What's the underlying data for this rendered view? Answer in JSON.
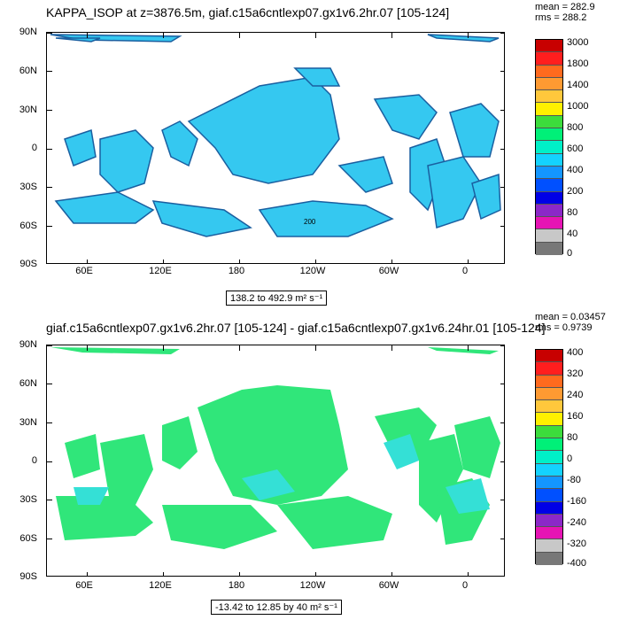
{
  "panels": [
    {
      "title": "KAPPA_ISOP at z=3876.5m, giaf.c15a6cntlexp07.gx1v6.2hr.07 [105-124]",
      "mean": "mean = 282.9",
      "rms": "rms = 288.2",
      "range": "138.2 to 492.9 m² s⁻¹",
      "contour_label": "200",
      "colorbar_labels": [
        "3000",
        "1800",
        "1400",
        "1000",
        "800",
        "600",
        "400",
        "200",
        "80",
        "40",
        "0"
      ],
      "colorbar_colors": [
        "#c80000",
        "#ff1e1e",
        "#ff6a1e",
        "#ff9a32",
        "#ffc83c",
        "#fff000",
        "#3cdc3c",
        "#00f078",
        "#00f0c8",
        "#14d2ff",
        "#1496ff",
        "#0050ff",
        "#0000e6",
        "#8c28c8",
        "#e614b4",
        "#c8c8c8",
        "#787878"
      ],
      "field_color": "#35c8f0"
    },
    {
      "title": "giaf.c15a6cntlexp07.gx1v6.2hr.07 [105-124] - giaf.c15a6cntlexp07.gx1v6.24hr.01 [105-124]",
      "mean": "mean = 0.03457",
      "rms": "rms = 0.9739",
      "range": "-13.42 to 12.85 by 40 m² s⁻¹",
      "colorbar_labels": [
        "400",
        "320",
        "240",
        "160",
        "80",
        "0",
        "-80",
        "-160",
        "-240",
        "-320",
        "-400"
      ],
      "colorbar_colors": [
        "#c80000",
        "#ff1e1e",
        "#ff6a1e",
        "#ff9a32",
        "#ffc83c",
        "#fff000",
        "#3cdc3c",
        "#00f078",
        "#00f0c8",
        "#14d2ff",
        "#1496ff",
        "#0050ff",
        "#0000e6",
        "#8c28c8",
        "#e614b4",
        "#c8c8c8",
        "#787878"
      ],
      "field_color": "#30e67a"
    }
  ],
  "axes": {
    "lat_labels": [
      "90N",
      "60N",
      "30N",
      "0",
      "30S",
      "60S",
      "90S"
    ],
    "lon_labels": [
      "60E",
      "120E",
      "180",
      "120W",
      "60W",
      "0"
    ]
  }
}
